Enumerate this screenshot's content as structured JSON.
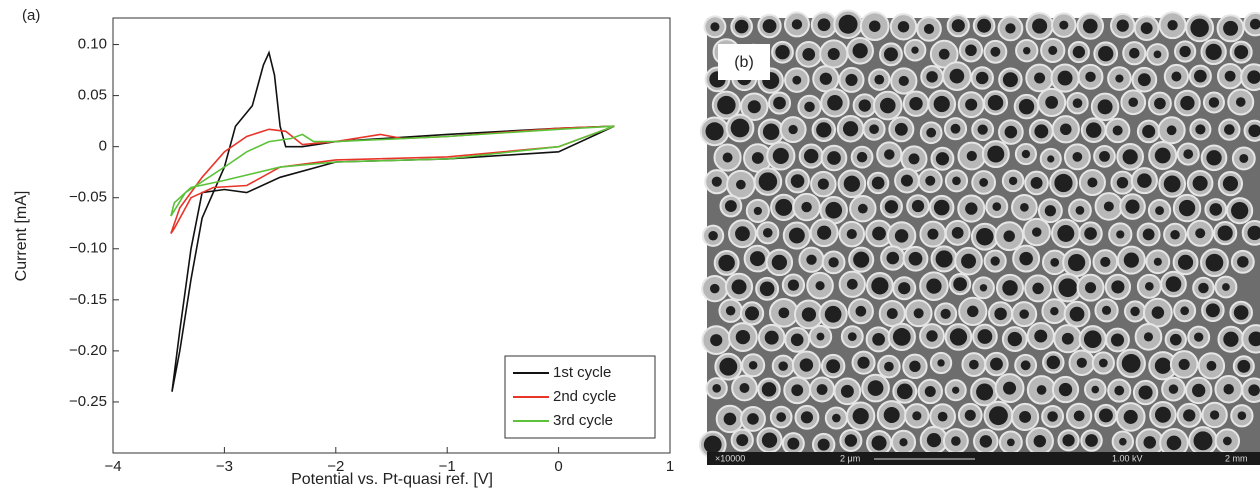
{
  "chart_data": {
    "type": "line",
    "panel_label": "(a)",
    "xlabel": "Potential vs. Pt-quasi ref. [V]",
    "ylabel": "Current [mA]",
    "xlim": [
      -4,
      1
    ],
    "xticks": [
      {
        "value": -4,
        "label": "−4"
      },
      {
        "value": -3,
        "label": "−3"
      },
      {
        "value": -2,
        "label": "−2"
      },
      {
        "value": -1,
        "label": "−1"
      },
      0,
      1
    ],
    "ylim": [
      -0.3,
      0.126
    ],
    "yticks": [
      {
        "value": 0.1,
        "label": "0.10"
      },
      0.05,
      0,
      {
        "value": -0.05,
        "label": "−0.05"
      },
      {
        "value": -0.1,
        "label": "−0.10"
      },
      {
        "value": -0.15,
        "label": "−0.15"
      },
      {
        "value": -0.2,
        "label": "−0.20"
      },
      {
        "value": -0.25,
        "label": "−0.25"
      }
    ],
    "legend": "lower right",
    "series": [
      {
        "name": "1st cycle",
        "color": "#111111",
        "x": [
          0.5,
          0,
          -1,
          -2,
          -2.5,
          -2.8,
          -3.0,
          -3.2,
          -3.3,
          -3.4,
          -3.47,
          -3.4,
          -3.3,
          -3.2,
          -3.0,
          -2.9,
          -2.75,
          -2.65,
          -2.6,
          -2.55,
          -2.5,
          -2.45,
          -2.3,
          -2,
          -1,
          0,
          0.5
        ],
        "values": [
          0.02,
          -0.005,
          -0.012,
          -0.015,
          -0.03,
          -0.045,
          -0.042,
          -0.045,
          -0.1,
          -0.18,
          -0.24,
          -0.2,
          -0.13,
          -0.07,
          -0.02,
          0.02,
          0.04,
          0.08,
          0.092,
          0.07,
          0.02,
          0.0,
          0.0,
          0.005,
          0.012,
          0.018,
          0.02
        ]
      },
      {
        "name": "2nd cycle",
        "color": "#e8352a",
        "x": [
          0.5,
          0,
          -1,
          -2,
          -2.5,
          -2.8,
          -3.1,
          -3.3,
          -3.45,
          -3.48,
          -3.4,
          -3.2,
          -3.0,
          -2.8,
          -2.6,
          -2.45,
          -2.3,
          -2,
          -1.6,
          -1.4,
          -1,
          0,
          0.5
        ],
        "values": [
          0.02,
          0.0,
          -0.01,
          -0.013,
          -0.02,
          -0.038,
          -0.04,
          -0.05,
          -0.08,
          -0.085,
          -0.06,
          -0.03,
          -0.005,
          0.01,
          0.017,
          0.015,
          0.002,
          0.005,
          0.012,
          0.008,
          0.01,
          0.018,
          0.02
        ]
      },
      {
        "name": "3rd cycle",
        "color": "#5cc23a",
        "x": [
          0.5,
          0,
          -1,
          -2,
          -2.5,
          -3,
          -3.3,
          -3.45,
          -3.48,
          -3.35,
          -3.0,
          -2.8,
          -2.6,
          -2.4,
          -2.3,
          -2.2,
          -2,
          -1,
          0,
          0.5
        ],
        "values": [
          0.02,
          0.0,
          -0.012,
          -0.015,
          -0.02,
          -0.033,
          -0.04,
          -0.055,
          -0.068,
          -0.045,
          -0.02,
          -0.005,
          0.005,
          0.008,
          0.012,
          0.005,
          0.005,
          0.01,
          0.017,
          0.02
        ]
      }
    ]
  },
  "micrograph": {
    "label": "(b)",
    "magnification": "×10000",
    "scale": "2 μm",
    "voltage": "1.00 kV",
    "distance": "2 mm"
  }
}
